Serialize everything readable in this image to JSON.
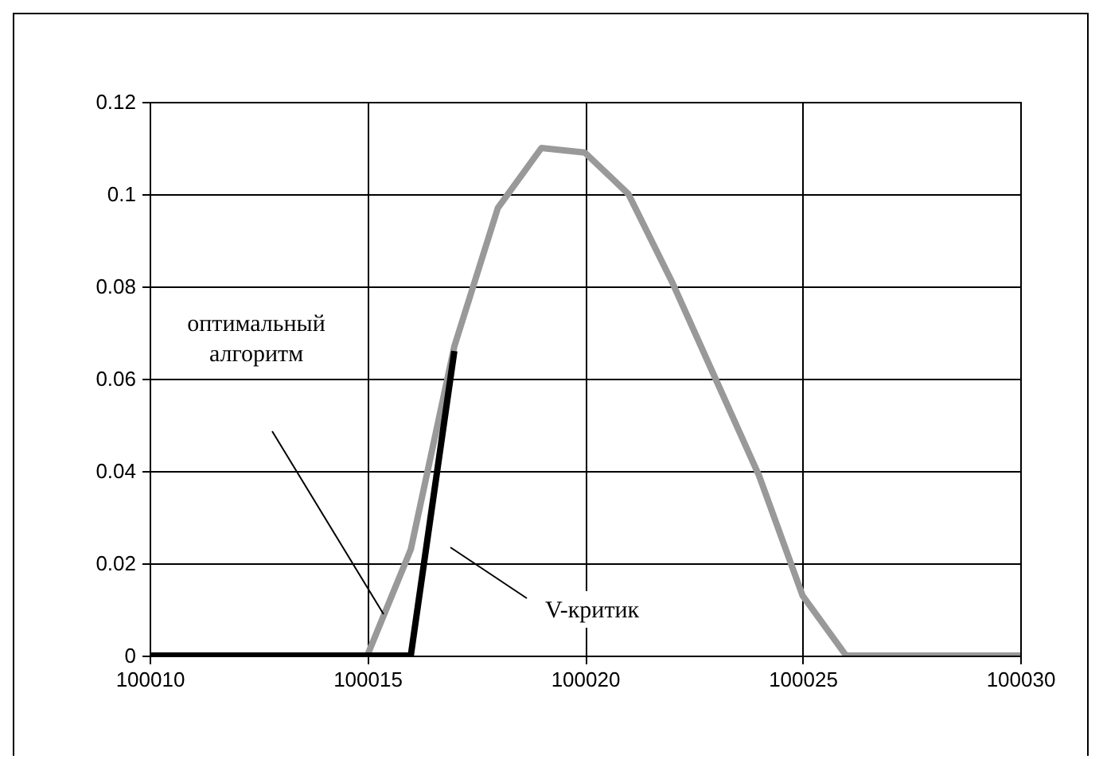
{
  "chart_data": {
    "type": "line",
    "series": [
      {
        "color": "#999999",
        "x": [
          100010,
          100011,
          100012,
          100013,
          100014,
          100015,
          100016,
          100017,
          100018,
          100019,
          100020,
          100021,
          100022,
          100023,
          100024,
          100025,
          100026,
          100027,
          100028,
          100029,
          100030
        ],
        "values": [
          0,
          0,
          0,
          0,
          0,
          0,
          0.023,
          0.067,
          0.097,
          0.11,
          0.109,
          0.1,
          0.081,
          0.06,
          0.039,
          0.013,
          0,
          0,
          0,
          0,
          0
        ]
      },
      {
        "color": "#000000",
        "x": [
          100010,
          100011,
          100012,
          100013,
          100014,
          100015,
          100016,
          100017
        ],
        "values": [
          0,
          0,
          0,
          0,
          0,
          0,
          0,
          0.066
        ]
      }
    ],
    "xlim": [
      100010,
      100030
    ],
    "xticks": [
      100010,
      100015,
      100020,
      100025,
      100030
    ],
    "ylim": [
      0,
      0.12
    ],
    "yticks": [
      0,
      0.02,
      0.04,
      0.06,
      0.08,
      0.1,
      0.12
    ],
    "grid": true,
    "legend": false,
    "marker": "none",
    "line_style": "solid",
    "annotations": [
      "оптимальный алгоритм",
      "V-критик"
    ]
  }
}
